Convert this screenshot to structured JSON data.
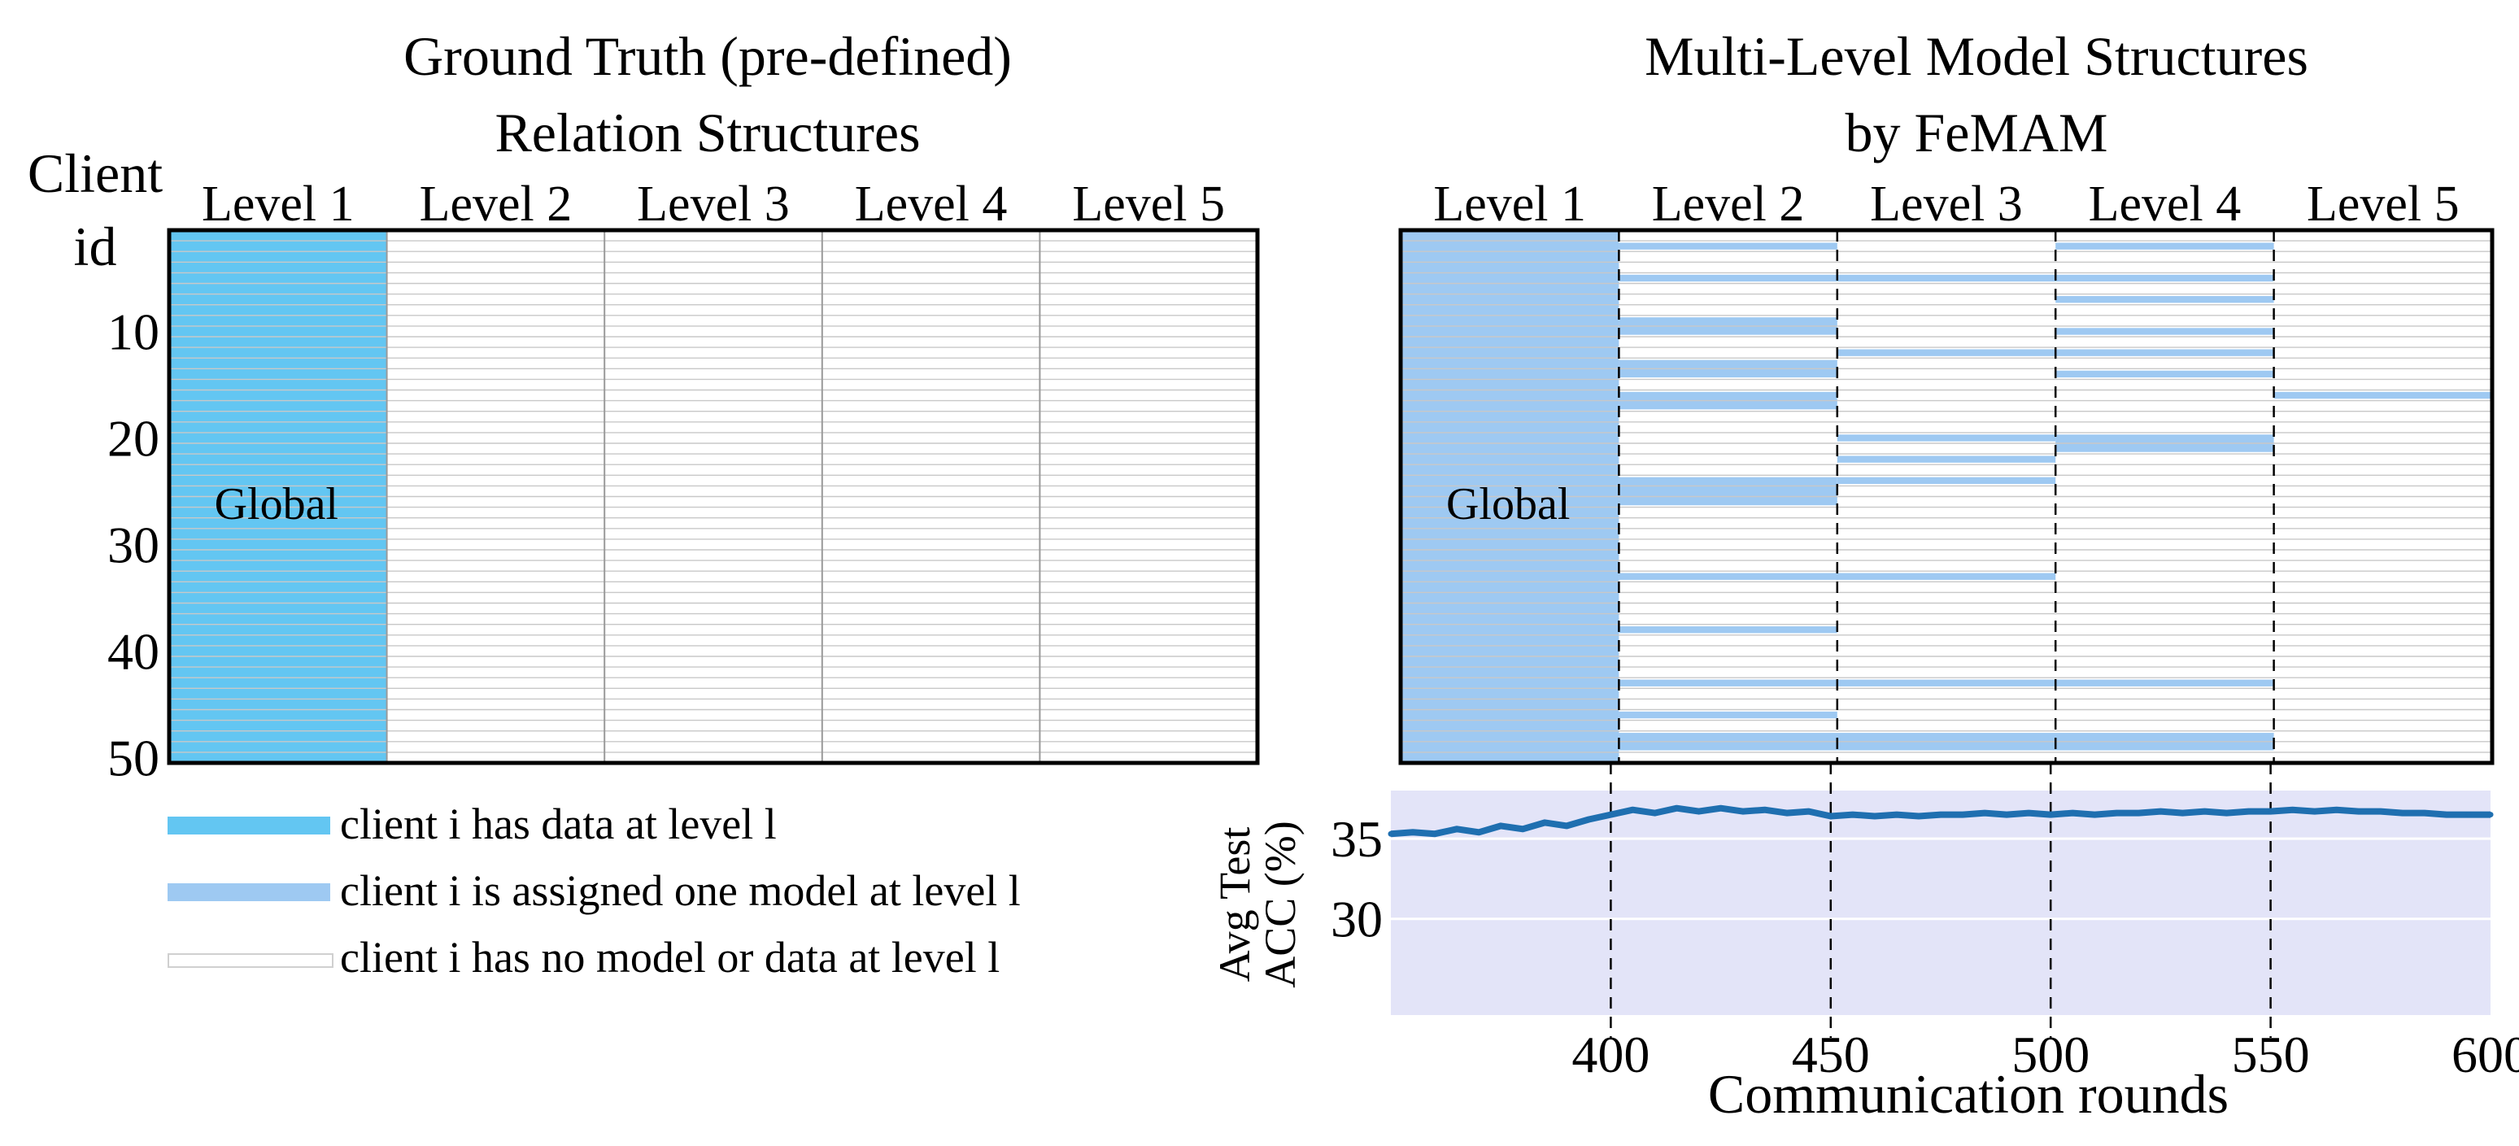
{
  "figure": {
    "left_title": "Ground Truth (pre-defined)\nRelation Structures",
    "right_title": "Multi-Level Model Structures\nby FeMAM",
    "row_axis_label": "Client\nid",
    "colors": {
      "ground_truth_fill": "#63c6f2",
      "assigned_fill": "#9ec9f2",
      "empty_line": "#c8c8c8",
      "accuracy_line": "#1f6fb0",
      "accuracy_bg": "#e3e4f8"
    }
  },
  "legend": [
    {
      "text": "client i has data at level l",
      "swatch_color": "#63c6f2"
    },
    {
      "text": "client i is assigned one model at level l",
      "swatch_color": "#9ec9f2"
    },
    {
      "text": "client i has no model or data at level l",
      "swatch_color": "#ffffff"
    }
  ],
  "chart_data": [
    {
      "type": "heatmap",
      "title": "Ground Truth (pre-defined) Relation Structures",
      "x_categories": [
        "Level 1",
        "Level 2",
        "Level 3",
        "Level 4",
        "Level 5"
      ],
      "ylabel": "Client id",
      "y_ticks": [
        10,
        20,
        30,
        40,
        50
      ],
      "n_clients": 50,
      "cells": [
        {
          "level": 1,
          "clients": [
            1,
            50
          ],
          "state": "has_data"
        }
      ],
      "annotations": [
        {
          "text": "Global",
          "level": 1,
          "client": 25
        }
      ]
    },
    {
      "type": "heatmap",
      "title": "Multi-Level Model Structures by FeMAM",
      "x_categories": [
        "Level 1",
        "Level 2",
        "Level 3",
        "Level 4",
        "Level 5"
      ],
      "y_ticks": [
        10,
        20,
        30,
        40,
        50
      ],
      "n_clients": 50,
      "level_rounds": [
        [
          350,
          400
        ],
        [
          400,
          450
        ],
        [
          450,
          500
        ],
        [
          500,
          550
        ],
        [
          550,
          600
        ]
      ],
      "assignments": [
        {
          "client_from": 1,
          "client_to": 50,
          "level_from": 1,
          "level_to": 1
        },
        {
          "client_from": 2,
          "client_to": 2,
          "level_from": 2,
          "level_to": 2
        },
        {
          "client_from": 2,
          "client_to": 2,
          "level_from": 4,
          "level_to": 4
        },
        {
          "client_from": 5,
          "client_to": 5,
          "level_from": 2,
          "level_to": 4
        },
        {
          "client_from": 7,
          "client_to": 7,
          "level_from": 4,
          "level_to": 4
        },
        {
          "client_from": 9,
          "client_to": 10,
          "level_from": 2,
          "level_to": 2
        },
        {
          "client_from": 10,
          "client_to": 10,
          "level_from": 4,
          "level_to": 4
        },
        {
          "client_from": 12,
          "client_to": 12,
          "level_from": 3,
          "level_to": 3
        },
        {
          "client_from": 12,
          "client_to": 12,
          "level_from": 4,
          "level_to": 4
        },
        {
          "client_from": 13,
          "client_to": 14,
          "level_from": 2,
          "level_to": 2
        },
        {
          "client_from": 14,
          "client_to": 14,
          "level_from": 4,
          "level_to": 4
        },
        {
          "client_from": 16,
          "client_to": 17,
          "level_from": 2,
          "level_to": 2
        },
        {
          "client_from": 16,
          "client_to": 16,
          "level_from": 5,
          "level_to": 5
        },
        {
          "client_from": 20,
          "client_to": 20,
          "level_from": 3,
          "level_to": 3
        },
        {
          "client_from": 20,
          "client_to": 21,
          "level_from": 4,
          "level_to": 4
        },
        {
          "client_from": 22,
          "client_to": 22,
          "level_from": 3,
          "level_to": 3
        },
        {
          "client_from": 24,
          "client_to": 24,
          "level_from": 3,
          "level_to": 3
        },
        {
          "client_from": 24,
          "client_to": 26,
          "level_from": 2,
          "level_to": 2
        },
        {
          "client_from": 33,
          "client_to": 33,
          "level_from": 2,
          "level_to": 3
        },
        {
          "client_from": 38,
          "client_to": 38,
          "level_from": 2,
          "level_to": 2
        },
        {
          "client_from": 43,
          "client_to": 43,
          "level_from": 2,
          "level_to": 4
        },
        {
          "client_from": 46,
          "client_to": 46,
          "level_from": 2,
          "level_to": 2
        },
        {
          "client_from": 48,
          "client_to": 49,
          "level_from": 2,
          "level_to": 4
        }
      ],
      "annotations": [
        {
          "text": "Global",
          "level": 1,
          "client": 25
        }
      ]
    },
    {
      "type": "line",
      "xlabel": "Communication rounds",
      "ylabel": "Avg Test\nACC (%)",
      "xlim": [
        350,
        600
      ],
      "ylim": [
        24,
        38
      ],
      "x_ticks": [
        400,
        450,
        500,
        550,
        600
      ],
      "y_ticks": [
        30,
        35
      ],
      "grid": true,
      "vlines": [
        400,
        450,
        500,
        550
      ],
      "series": [
        {
          "x": [
            350,
            355,
            360,
            365,
            370,
            375,
            380,
            385,
            390,
            395,
            400,
            405,
            410,
            415,
            420,
            425,
            430,
            435,
            440,
            445,
            450,
            455,
            460,
            465,
            470,
            475,
            480,
            485,
            490,
            495,
            500,
            505,
            510,
            515,
            520,
            525,
            530,
            535,
            540,
            545,
            550,
            555,
            560,
            565,
            570,
            575,
            580,
            585,
            590,
            595,
            600
          ],
          "y": [
            35.3,
            35.4,
            35.3,
            35.6,
            35.4,
            35.8,
            35.6,
            36.0,
            35.8,
            36.2,
            36.5,
            36.8,
            36.6,
            36.9,
            36.7,
            36.9,
            36.7,
            36.8,
            36.6,
            36.7,
            36.4,
            36.5,
            36.4,
            36.5,
            36.4,
            36.5,
            36.5,
            36.6,
            36.5,
            36.6,
            36.5,
            36.6,
            36.5,
            36.6,
            36.6,
            36.7,
            36.6,
            36.7,
            36.6,
            36.7,
            36.7,
            36.8,
            36.7,
            36.8,
            36.7,
            36.7,
            36.6,
            36.6,
            36.5,
            36.5,
            36.5
          ]
        }
      ]
    }
  ]
}
